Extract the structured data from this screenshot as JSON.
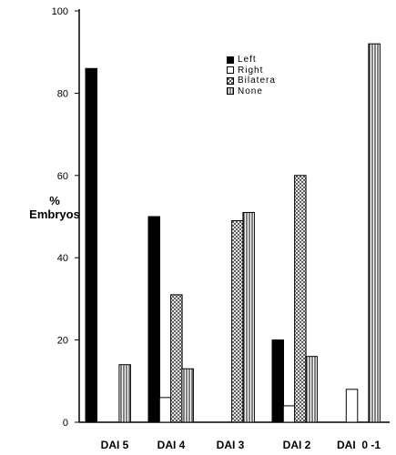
{
  "chart_data": {
    "type": "bar",
    "categories": [
      "DAI 5",
      "DAI 4",
      "DAI 3",
      "DAI 2",
      "DAI  0 -1"
    ],
    "series": [
      {
        "name": "Left",
        "values": [
          86,
          50,
          0,
          20,
          0
        ]
      },
      {
        "name": "Right",
        "values": [
          0,
          6,
          0,
          4,
          8
        ]
      },
      {
        "name": "Bilatera",
        "values": [
          0,
          31,
          49,
          60,
          0
        ]
      },
      {
        "name": "None",
        "values": [
          14,
          13,
          51,
          16,
          92
        ]
      }
    ],
    "title": "",
    "xlabel": "",
    "ylabel": "% Embryos",
    "ylim": [
      0,
      100
    ],
    "yticks": [
      0,
      20,
      40,
      60,
      80,
      100
    ],
    "grid": false,
    "legend": "top-right"
  }
}
